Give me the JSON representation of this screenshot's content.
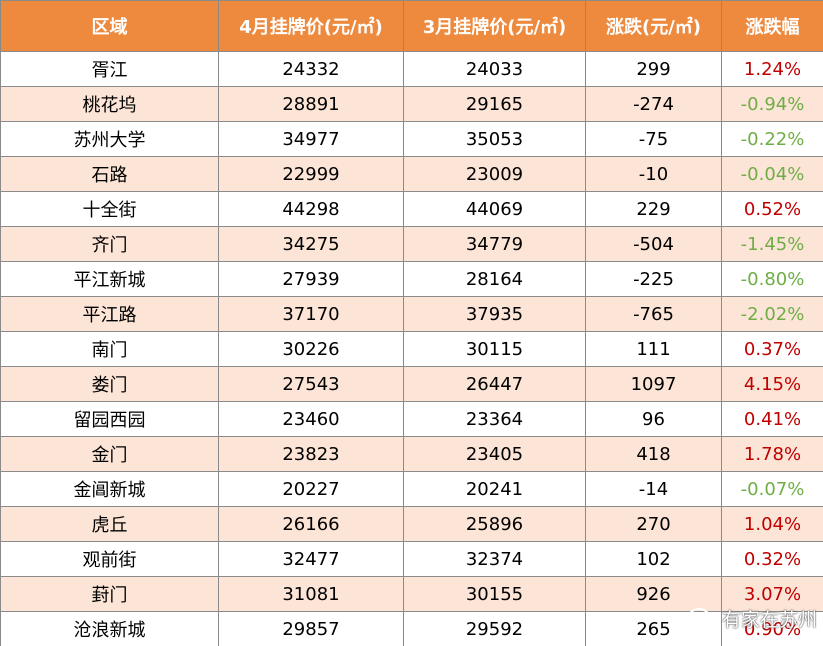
{
  "table": {
    "headers": [
      "区域",
      "4月挂牌价(元/㎡)",
      "3月挂牌价(元/㎡)",
      "涨跌(元/㎡)",
      "涨跌幅"
    ],
    "rows": [
      {
        "area": "胥江",
        "apr": "24332",
        "mar": "24033",
        "change": "299",
        "pct": "1.24%",
        "dir": "up"
      },
      {
        "area": "桃花坞",
        "apr": "28891",
        "mar": "29165",
        "change": "-274",
        "pct": "-0.94%",
        "dir": "down"
      },
      {
        "area": "苏州大学",
        "apr": "34977",
        "mar": "35053",
        "change": "-75",
        "pct": "-0.22%",
        "dir": "down"
      },
      {
        "area": "石路",
        "apr": "22999",
        "mar": "23009",
        "change": "-10",
        "pct": "-0.04%",
        "dir": "down"
      },
      {
        "area": "十全街",
        "apr": "44298",
        "mar": "44069",
        "change": "229",
        "pct": "0.52%",
        "dir": "up"
      },
      {
        "area": "齐门",
        "apr": "34275",
        "mar": "34779",
        "change": "-504",
        "pct": "-1.45%",
        "dir": "down"
      },
      {
        "area": "平江新城",
        "apr": "27939",
        "mar": "28164",
        "change": "-225",
        "pct": "-0.80%",
        "dir": "down"
      },
      {
        "area": "平江路",
        "apr": "37170",
        "mar": "37935",
        "change": "-765",
        "pct": "-2.02%",
        "dir": "down"
      },
      {
        "area": "南门",
        "apr": "30226",
        "mar": "30115",
        "change": "111",
        "pct": "0.37%",
        "dir": "up"
      },
      {
        "area": "娄门",
        "apr": "27543",
        "mar": "26447",
        "change": "1097",
        "pct": "4.15%",
        "dir": "up"
      },
      {
        "area": "留园西园",
        "apr": "23460",
        "mar": "23364",
        "change": "96",
        "pct": "0.41%",
        "dir": "up"
      },
      {
        "area": "金门",
        "apr": "23823",
        "mar": "23405",
        "change": "418",
        "pct": "1.78%",
        "dir": "up"
      },
      {
        "area": "金阊新城",
        "apr": "20227",
        "mar": "20241",
        "change": "-14",
        "pct": "-0.07%",
        "dir": "down"
      },
      {
        "area": "虎丘",
        "apr": "26166",
        "mar": "25896",
        "change": "270",
        "pct": "1.04%",
        "dir": "up"
      },
      {
        "area": "观前街",
        "apr": "32477",
        "mar": "32374",
        "change": "102",
        "pct": "0.32%",
        "dir": "up"
      },
      {
        "area": "葑门",
        "apr": "31081",
        "mar": "30155",
        "change": "926",
        "pct": "3.07%",
        "dir": "up"
      },
      {
        "area": "沧浪新城",
        "apr": "29857",
        "mar": "29592",
        "change": "265",
        "pct": "0.90%",
        "dir": "up"
      }
    ]
  },
  "watermark": {
    "text": "有家在苏州",
    "icon": "wechat-icon"
  },
  "colors": {
    "header_bg": "#ee8a3e",
    "stripe_bg": "#fce4d6",
    "up": "#c00000",
    "down": "#70ad47"
  }
}
